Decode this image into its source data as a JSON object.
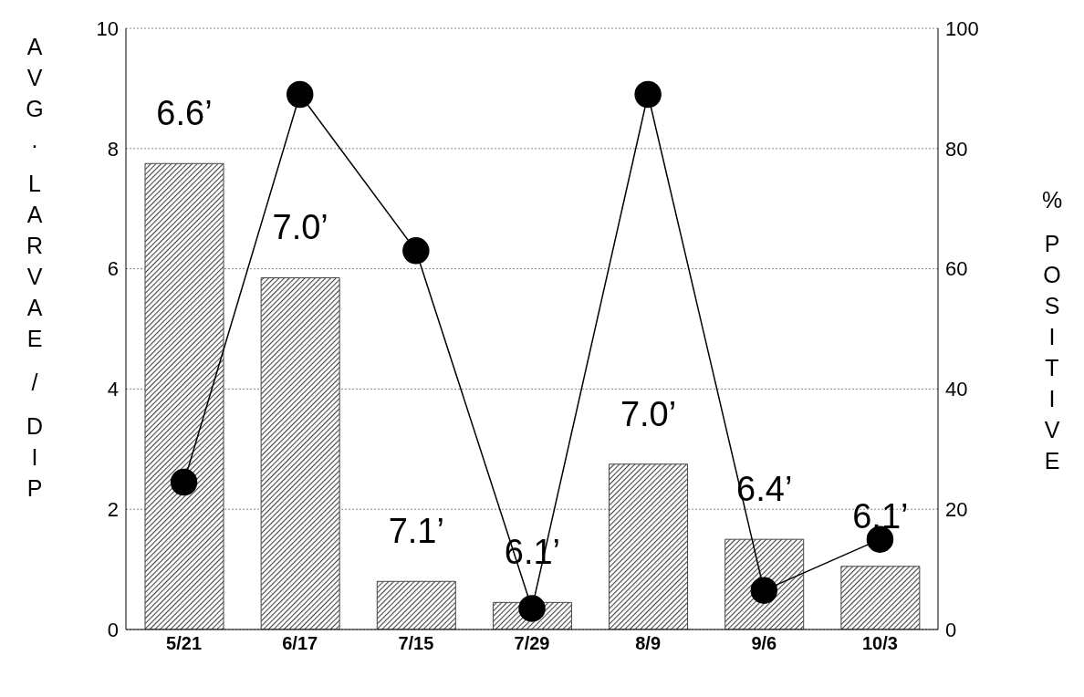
{
  "chart_data": {
    "type": "bar",
    "ylabel": "AVG. LARVAE / DIP",
    "y2label": "% POSITIVE",
    "categories": [
      "5/21",
      "6/17",
      "7/15",
      "7/29",
      "8/9",
      "9/6",
      "10/3"
    ],
    "series": [
      {
        "color": "#444444",
        "values": [
          7.75,
          5.85,
          0.8,
          0.45,
          2.75,
          1.5,
          1.05
        ]
      },
      {
        "type": "line",
        "axis": "y2",
        "color": "#000000",
        "values": [
          24.5,
          89,
          63,
          3.5,
          89,
          6.5,
          15
        ]
      }
    ],
    "ylim": [
      0,
      10
    ],
    "yticks": [
      0,
      2,
      4,
      6,
      8,
      10
    ],
    "y2lim": [
      0,
      100
    ],
    "y2ticks": [
      0,
      20,
      40,
      60,
      80,
      100
    ],
    "grid": "y",
    "marker": "circle",
    "line_style": "solid",
    "annotations": [
      "6.6’",
      "7.0’",
      "7.1’",
      "6.1’",
      "7.0’",
      "6.4’",
      "6.1’"
    ]
  }
}
